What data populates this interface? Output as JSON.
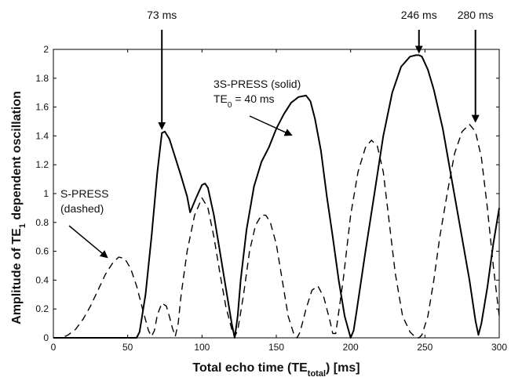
{
  "chart_data": {
    "type": "line",
    "title": "",
    "xlabel": "Total echo time (TE",
    "xlabel_sub": "total",
    "xlabel_tail": ") [ms]",
    "ylabel": "Amplitude of TE",
    "ylabel_sub": "1",
    "ylabel_tail": " dependent oscillation",
    "xlim": [
      0,
      300
    ],
    "ylim": [
      0,
      2
    ],
    "xticks": [
      0,
      50,
      100,
      150,
      200,
      250,
      300
    ],
    "yticks": [
      0,
      0.2,
      0.4,
      0.6,
      0.8,
      1,
      1.2,
      1.4,
      1.6,
      1.8,
      2
    ],
    "grid": false,
    "series": [
      {
        "name": "3S-PRESS (solid)",
        "style": "solid",
        "color": "#000000",
        "x": [
          0,
          56,
          58,
          62,
          66,
          70,
          73,
          75,
          78,
          82,
          86,
          90,
          92,
          96,
          100,
          102,
          104,
          108,
          112,
          116,
          120,
          122,
          124,
          126,
          130,
          135,
          140,
          145,
          150,
          155,
          160,
          165,
          170,
          173,
          176,
          180,
          184,
          188,
          192,
          196,
          200,
          202,
          204,
          210,
          216,
          222,
          228,
          234,
          240,
          244,
          246,
          248,
          252,
          256,
          262,
          268,
          274,
          280,
          284,
          286,
          288,
          292,
          296,
          300
        ],
        "y": [
          0,
          0,
          0.04,
          0.3,
          0.7,
          1.15,
          1.42,
          1.43,
          1.38,
          1.25,
          1.12,
          0.98,
          0.87,
          0.97,
          1.06,
          1.07,
          1.04,
          0.85,
          0.6,
          0.35,
          0.1,
          0,
          0.15,
          0.4,
          0.75,
          1.05,
          1.22,
          1.32,
          1.45,
          1.55,
          1.63,
          1.67,
          1.68,
          1.64,
          1.52,
          1.3,
          0.98,
          0.7,
          0.4,
          0.15,
          0,
          0.05,
          0.18,
          0.6,
          1.0,
          1.4,
          1.7,
          1.88,
          1.95,
          1.96,
          1.96,
          1.95,
          1.86,
          1.72,
          1.45,
          1.1,
          0.75,
          0.4,
          0.12,
          0.02,
          0.1,
          0.35,
          0.65,
          0.9
        ]
      },
      {
        "name": "S-PRESS (dashed)",
        "style": "dashed",
        "color": "#000000",
        "x": [
          0,
          6,
          10,
          15,
          20,
          25,
          30,
          35,
          40,
          44,
          48,
          52,
          56,
          60,
          64,
          66,
          68,
          70,
          73,
          76,
          78,
          80,
          82,
          84,
          86,
          90,
          95,
          100,
          104,
          108,
          112,
          116,
          120,
          122,
          124,
          128,
          132,
          136,
          140,
          143,
          146,
          150,
          154,
          158,
          162,
          164,
          166,
          170,
          174,
          178,
          182,
          186,
          188,
          190,
          195,
          200,
          205,
          210,
          214,
          218,
          222,
          226,
          230,
          235,
          240,
          244,
          246,
          248,
          252,
          256,
          260,
          265,
          270,
          275,
          280,
          284,
          288,
          292,
          296,
          300
        ],
        "y": [
          0,
          0,
          0.02,
          0.06,
          0.13,
          0.22,
          0.33,
          0.44,
          0.52,
          0.56,
          0.55,
          0.48,
          0.36,
          0.2,
          0.05,
          0.01,
          0.05,
          0.16,
          0.24,
          0.22,
          0.15,
          0.07,
          0.01,
          0.1,
          0.3,
          0.6,
          0.85,
          0.97,
          0.9,
          0.7,
          0.45,
          0.22,
          0.06,
          0.01,
          0.05,
          0.3,
          0.6,
          0.78,
          0.85,
          0.85,
          0.8,
          0.65,
          0.4,
          0.15,
          0.02,
          0.0,
          0.04,
          0.2,
          0.33,
          0.36,
          0.28,
          0.12,
          0.03,
          0.03,
          0.4,
          0.85,
          1.15,
          1.32,
          1.37,
          1.33,
          1.15,
          0.8,
          0.45,
          0.15,
          0.04,
          0.0,
          0.0,
          0.02,
          0.15,
          0.4,
          0.7,
          1.0,
          1.28,
          1.43,
          1.48,
          1.43,
          1.25,
          0.9,
          0.5,
          0.15
        ]
      }
    ],
    "annotations": {
      "solid_label_1": "3S-PRESS (solid)",
      "solid_label_2": "TE",
      "solid_label_sub": "0",
      "solid_label_tail": " = 40 ms",
      "dashed_label_1": "S-PRESS",
      "dashed_label_2": "(dashed)",
      "peaks": [
        {
          "label": "73 ms",
          "x": 73,
          "y": 1.43
        },
        {
          "label": "246 ms",
          "x": 246,
          "y": 1.96
        },
        {
          "label": "280 ms",
          "x": 284,
          "y": 1.48
        }
      ]
    }
  }
}
